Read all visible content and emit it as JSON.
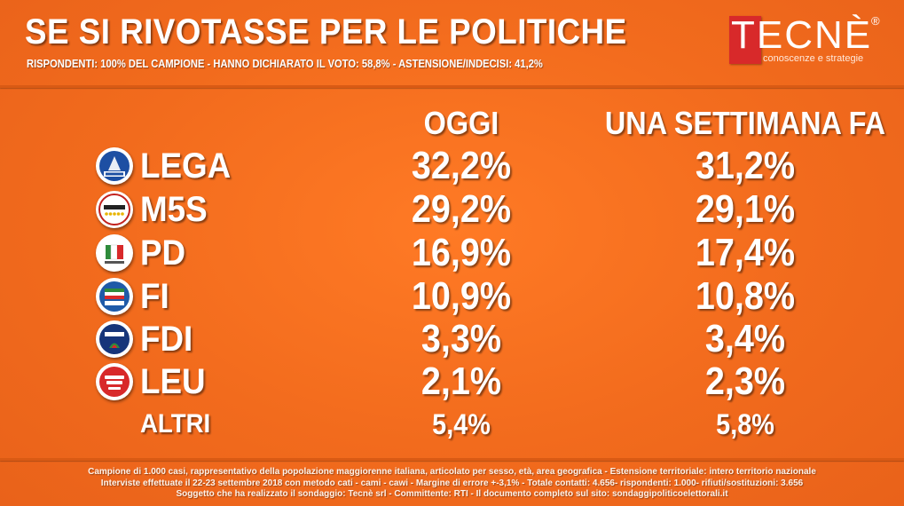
{
  "header": {
    "title": "SE SI RIVOTASSE PER LE POLITICHE",
    "subtitle": "RISPONDENTI: 100% DEL CAMPIONE - HANNO DICHIARATO IL VOTO: 58,8% - ASTENSIONE/INDECISI: 41,2%"
  },
  "logo": {
    "text": "TECNÈ",
    "registered": "®",
    "tagline": "conoscenze e strategie"
  },
  "columns": {
    "today": "OGGI",
    "week_ago": "UNA SETTIMANA FA"
  },
  "chart_data": {
    "type": "table",
    "title": "SE SI RIVOTASSE PER LE POLITICHE",
    "columns": [
      "OGGI",
      "UNA SETTIMANA FA"
    ],
    "rows": [
      {
        "party": "LEGA",
        "today": "32,2%",
        "week_ago": "31,2%",
        "icon": "lega-logo-icon"
      },
      {
        "party": "M5S",
        "today": "29,2%",
        "week_ago": "29,1%",
        "icon": "m5s-logo-icon"
      },
      {
        "party": "PD",
        "today": "16,9%",
        "week_ago": "17,4%",
        "icon": "pd-logo-icon"
      },
      {
        "party": "FI",
        "today": "10,9%",
        "week_ago": "10,8%",
        "icon": "fi-logo-icon"
      },
      {
        "party": "FDI",
        "today": "3,3%",
        "week_ago": "3,4%",
        "icon": "fdi-logo-icon"
      },
      {
        "party": "LEU",
        "today": "2,1%",
        "week_ago": "2,3%",
        "icon": "leu-logo-icon"
      },
      {
        "party": "ALTRI",
        "today": "5,4%",
        "week_ago": "5,8%",
        "icon": ""
      }
    ],
    "series": [
      {
        "name": "OGGI",
        "values": [
          32.2,
          29.2,
          16.9,
          10.9,
          3.3,
          2.1,
          5.4
        ]
      },
      {
        "name": "UNA SETTIMANA FA",
        "values": [
          31.2,
          29.1,
          17.4,
          10.8,
          3.4,
          2.3,
          5.8
        ]
      }
    ],
    "categories": [
      "LEGA",
      "M5S",
      "PD",
      "FI",
      "FDI",
      "LEU",
      "ALTRI"
    ]
  },
  "footnote": {
    "line1": "Campione di 1.000 casi, rappresentativo della popolazione maggiorenne italiana, articolato per sesso, età, area geografica - Estensione territoriale: intero territorio nazionale",
    "line2": "Interviste effettuate il 22-23 settembre 2018 con metodo cati - cami - cawi - Margine di errore +-3,1% - Totale contatti: 4.656- rispondenti: 1.000- rifiuti/sostituzioni: 3.656",
    "line3": "Soggetto che ha realizzato il sondaggio: Tecnè srl - Committente: RTI - Il documento completo sul sito: sondaggipoliticoelettorali.it"
  },
  "colors": {
    "background": "#f26b1d",
    "logo_red": "#d8292a",
    "text": "#ffffff"
  }
}
